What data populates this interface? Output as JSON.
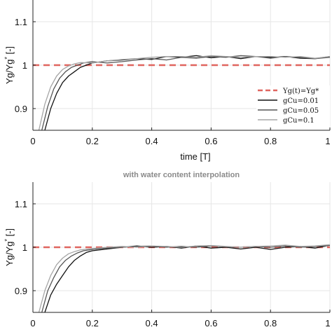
{
  "chart_data": [
    {
      "type": "line",
      "title": "",
      "xlabel": "time [T]",
      "ylabel": "Yg/Yg* [-]",
      "ylabel_main": "Yg/Yg",
      "ylabel_sup": "*",
      "ylabel_unit": "[-]",
      "xlim": [
        0,
        1
      ],
      "ylim": [
        0.85,
        1.15
      ],
      "xticks": [
        "0",
        "0.2",
        "0.4",
        "0.6",
        "0.8",
        "1"
      ],
      "xtick_values": [
        0,
        0.2,
        0.4,
        0.6,
        0.8,
        1
      ],
      "yticks": [
        "0.9",
        "1",
        "1.1"
      ],
      "ytick_values": [
        0.9,
        1.0,
        1.1
      ],
      "grid": true,
      "legend_position": "right",
      "reference": {
        "name": "Yg(t)=Yg*",
        "y": 1.0,
        "color": "#e0655f",
        "style": "dashed"
      },
      "series": [
        {
          "name": "gCu=0.01",
          "color": "#111111",
          "x": [
            0.04,
            0.06,
            0.08,
            0.1,
            0.12,
            0.14,
            0.16,
            0.18,
            0.2,
            0.25,
            0.3,
            0.35,
            0.4,
            0.45,
            0.5,
            0.55,
            0.6,
            0.65,
            0.7,
            0.75,
            0.8,
            0.85,
            0.9,
            0.95,
            1.0
          ],
          "y": [
            0.85,
            0.9,
            0.935,
            0.96,
            0.975,
            0.985,
            0.995,
            1.0,
            1.005,
            1.01,
            1.012,
            1.015,
            1.013,
            1.02,
            1.018,
            1.022,
            1.017,
            1.02,
            1.015,
            1.02,
            1.018,
            1.02,
            1.016,
            1.015,
            1.02
          ]
        },
        {
          "name": "gCu=0.05",
          "color": "#555555",
          "x": [
            0.03,
            0.05,
            0.07,
            0.09,
            0.11,
            0.13,
            0.15,
            0.17,
            0.2,
            0.25,
            0.3,
            0.35,
            0.4,
            0.45,
            0.5,
            0.55,
            0.6,
            0.65,
            0.7,
            0.75,
            0.8,
            0.85,
            0.9,
            0.95,
            1.0
          ],
          "y": [
            0.85,
            0.905,
            0.945,
            0.97,
            0.985,
            0.995,
            1.0,
            1.005,
            1.008,
            1.005,
            1.008,
            1.012,
            1.015,
            1.012,
            1.018,
            1.016,
            1.02,
            1.018,
            1.022,
            1.02,
            1.016,
            1.02,
            1.018,
            1.015,
            1.018
          ]
        },
        {
          "name": "gCu=0.1",
          "color": "#a6a6a6",
          "x": [
            0.02,
            0.04,
            0.06,
            0.08,
            0.1,
            0.12,
            0.14,
            0.16,
            0.2,
            0.25,
            0.3,
            0.35,
            0.4,
            0.45,
            0.5,
            0.55,
            0.6,
            0.65,
            0.7,
            0.75,
            0.8,
            0.85,
            0.9,
            0.95,
            1.0
          ],
          "y": [
            0.85,
            0.91,
            0.95,
            0.975,
            0.99,
            0.998,
            1.003,
            1.006,
            1.005,
            1.01,
            1.013,
            1.015,
            1.018,
            1.02,
            1.02,
            1.018,
            1.022,
            1.02,
            1.018,
            1.02,
            1.02,
            1.018,
            1.02,
            1.016,
            1.02
          ]
        }
      ]
    },
    {
      "type": "line",
      "title": "with water content interpolation",
      "xlabel": "",
      "ylabel": "Yg/Yg* [-]",
      "ylabel_main": "Yg/Yg",
      "ylabel_sup": "*",
      "ylabel_unit": "[-]",
      "xlim": [
        0,
        1
      ],
      "ylim": [
        0.85,
        1.15
      ],
      "xticks": [
        "0",
        "0.2",
        "0.4",
        "0.6",
        "0.8",
        "1"
      ],
      "xtick_values": [
        0,
        0.2,
        0.4,
        0.6,
        0.8,
        1
      ],
      "yticks": [
        "0.9",
        "1",
        "1.1"
      ],
      "ytick_values": [
        0.9,
        1.0,
        1.1
      ],
      "grid": true,
      "reference": {
        "name": "Yg(t)=Yg*",
        "y": 1.0,
        "color": "#e0655f",
        "style": "dashed"
      },
      "series": [
        {
          "name": "gCu=0.01",
          "color": "#111111",
          "x": [
            0.04,
            0.06,
            0.08,
            0.1,
            0.12,
            0.14,
            0.16,
            0.18,
            0.2,
            0.25,
            0.3,
            0.35,
            0.4,
            0.45,
            0.5,
            0.55,
            0.6,
            0.65,
            0.7,
            0.75,
            0.8,
            0.85,
            0.9,
            0.95,
            1.0
          ],
          "y": [
            0.85,
            0.89,
            0.915,
            0.935,
            0.955,
            0.97,
            0.98,
            0.988,
            0.992,
            0.996,
            1.0,
            1.003,
            1.0,
            1.002,
            0.998,
            1.003,
            0.998,
            1.0,
            0.996,
            1.0,
            0.995,
            1.0,
            1.002,
            0.998,
            1.005
          ]
        },
        {
          "name": "gCu=0.05",
          "color": "#555555",
          "x": [
            0.03,
            0.05,
            0.07,
            0.09,
            0.11,
            0.13,
            0.15,
            0.17,
            0.2,
            0.25,
            0.3,
            0.35,
            0.4,
            0.45,
            0.5,
            0.55,
            0.6,
            0.65,
            0.7,
            0.75,
            0.8,
            0.85,
            0.9,
            0.95,
            1.0
          ],
          "y": [
            0.85,
            0.9,
            0.93,
            0.955,
            0.97,
            0.98,
            0.987,
            0.992,
            0.995,
            0.998,
            1.0,
            1.002,
            1.003,
            1.0,
            1.002,
            1.0,
            1.003,
            1.001,
            1.0,
            1.002,
            1.0,
            1.003,
            1.0,
            1.002,
            1.004
          ]
        },
        {
          "name": "gCu=0.1",
          "color": "#a6a6a6",
          "x": [
            0.02,
            0.04,
            0.06,
            0.08,
            0.1,
            0.12,
            0.14,
            0.16,
            0.2,
            0.25,
            0.3,
            0.35,
            0.4,
            0.45,
            0.5,
            0.55,
            0.6,
            0.65,
            0.7,
            0.75,
            0.8,
            0.85,
            0.9,
            0.95,
            1.0
          ],
          "y": [
            0.85,
            0.9,
            0.935,
            0.96,
            0.975,
            0.985,
            0.99,
            0.994,
            0.997,
            1.0,
            1.002,
            1.0,
            1.003,
            1.002,
            1.0,
            1.003,
            1.004,
            1.002,
            1.0,
            1.002,
            1.003,
            1.005,
            1.002,
            1.003,
            1.006
          ]
        }
      ]
    }
  ],
  "colors": {
    "reference": "#e0655f",
    "grid": "#e6e6e6",
    "axis": "#222222"
  }
}
